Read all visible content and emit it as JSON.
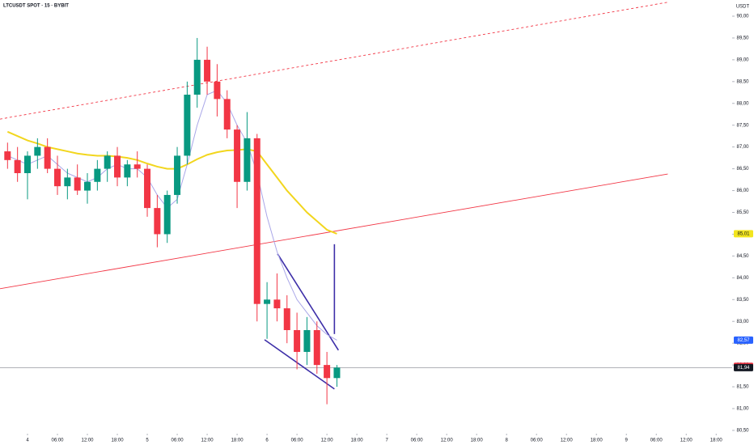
{
  "chart_data": {
    "type": "candlestick",
    "title": "LTCUSDT SPOT · 15 · BYBIT",
    "currency": "USDT",
    "up_color": "#089981",
    "down_color": "#f23645",
    "x": [
      -4,
      -2,
      0,
      2,
      4,
      6,
      8,
      10,
      12,
      14,
      16,
      18,
      20,
      22,
      24,
      26,
      28,
      30,
      32,
      34,
      36,
      38,
      40,
      42,
      44,
      46,
      48,
      50,
      52,
      54,
      56,
      58,
      60,
      62
    ],
    "open": [
      86.9,
      86.7,
      86.4,
      86.8,
      87.0,
      86.5,
      86.1,
      86.3,
      86.0,
      86.2,
      86.5,
      86.8,
      86.3,
      86.6,
      86.5,
      85.6,
      85.0,
      85.9,
      86.8,
      88.2,
      89.0,
      88.5,
      88.1,
      87.4,
      86.2,
      87.2,
      83.4,
      83.5,
      83.3,
      82.8,
      82.3,
      82.8,
      82.0,
      81.7
    ],
    "high": [
      87.1,
      87.0,
      86.9,
      87.2,
      87.2,
      86.8,
      86.5,
      86.6,
      86.4,
      86.7,
      86.9,
      87.0,
      86.7,
      86.9,
      86.6,
      85.9,
      86.0,
      87.0,
      88.5,
      89.5,
      89.3,
      88.9,
      88.3,
      87.5,
      87.8,
      87.3,
      83.9,
      84.1,
      83.6,
      83.2,
      83.1,
      83.0,
      82.3,
      82.0
    ],
    "low": [
      86.5,
      86.2,
      85.8,
      86.5,
      86.4,
      85.9,
      85.8,
      85.9,
      85.7,
      86.0,
      86.2,
      86.1,
      86.1,
      86.3,
      85.4,
      84.7,
      84.8,
      85.7,
      86.6,
      87.9,
      88.2,
      87.7,
      87.2,
      85.6,
      86.0,
      83.0,
      82.6,
      83.0,
      82.5,
      81.9,
      82.0,
      81.8,
      81.1,
      81.5
    ],
    "close": [
      86.7,
      86.4,
      86.8,
      87.0,
      86.5,
      86.1,
      86.3,
      86.0,
      86.2,
      86.5,
      86.8,
      86.3,
      86.6,
      86.5,
      85.6,
      85.0,
      85.9,
      86.8,
      88.2,
      89.0,
      88.5,
      88.1,
      87.4,
      86.2,
      87.2,
      83.4,
      83.5,
      83.3,
      82.8,
      82.3,
      82.8,
      82.0,
      81.7,
      81.94
    ],
    "series": [
      {
        "color": "#f2d61e",
        "values": [
          87.35,
          87.25,
          87.15,
          87.08,
          87.0,
          86.95,
          86.9,
          86.85,
          86.82,
          86.8,
          86.8,
          86.78,
          86.75,
          86.7,
          86.62,
          86.55,
          86.5,
          86.5,
          86.6,
          86.72,
          86.82,
          86.88,
          86.92,
          86.93,
          86.95,
          86.9,
          86.6,
          86.3,
          86.0,
          85.75,
          85.5,
          85.3,
          85.1,
          85.01
        ]
      },
      {
        "color": "#a9a6e8",
        "values": [
          86.8,
          86.7,
          86.6,
          86.7,
          86.8,
          86.6,
          86.4,
          86.3,
          86.2,
          86.3,
          86.5,
          86.6,
          86.5,
          86.5,
          86.3,
          85.9,
          85.6,
          85.8,
          86.6,
          87.5,
          88.2,
          88.3,
          88.0,
          87.5,
          87.1,
          86.4,
          85.4,
          84.6,
          84.0,
          83.5,
          83.2,
          82.9,
          82.7,
          82.57
        ]
      }
    ],
    "drawings": [
      {
        "color": "#f23645",
        "dashed": true,
        "points": [
          [
            -5.51,
            87.64
          ],
          [
            128.3,
            90.32
          ]
        ]
      },
      {
        "color": "#f23645",
        "dashed": false,
        "points": [
          [
            -5.51,
            83.75
          ],
          [
            128.3,
            86.38
          ]
        ]
      },
      {
        "color": "#3d2fa8",
        "dashed": false,
        "points": [
          [
            50.1,
            84.55
          ],
          [
            62.3,
            82.34
          ]
        ]
      },
      {
        "color": "#3d2fa8",
        "dashed": false,
        "points": [
          [
            47.5,
            82.58
          ],
          [
            61.5,
            81.45
          ]
        ]
      },
      {
        "color": "#3d2fa8",
        "dashed": false,
        "points": [
          [
            61.5,
            84.77
          ],
          [
            61.5,
            82.71
          ]
        ]
      }
    ],
    "price_line": 81.94,
    "price_labels": [
      {
        "value": 85.01,
        "label": "85,01",
        "color": "#f2e51e"
      },
      {
        "value": 82.57,
        "label": "82,57",
        "color": "#2962ff"
      },
      {
        "value": 81.97,
        "label": "81,97",
        "color": "#f23645"
      },
      {
        "value": 81.94,
        "label": "81,94",
        "color": "#131722"
      }
    ],
    "xlim": [
      -5.51,
      141.2
    ],
    "ylim": [
      80.128,
      90.371
    ],
    "xticks": [
      {
        "value": 0,
        "label": "4"
      },
      {
        "value": 6,
        "label": "06:00"
      },
      {
        "value": 12,
        "label": "12:00"
      },
      {
        "value": 18,
        "label": "18:00"
      },
      {
        "value": 24,
        "label": "5"
      },
      {
        "value": 30,
        "label": "06:00"
      },
      {
        "value": 36,
        "label": "12:00"
      },
      {
        "value": 42,
        "label": "18:00"
      },
      {
        "value": 48,
        "label": "6"
      },
      {
        "value": 54,
        "label": "06:00"
      },
      {
        "value": 60,
        "label": "12:00"
      },
      {
        "value": 66,
        "label": "18:00"
      },
      {
        "value": 72,
        "label": "7"
      },
      {
        "value": 78,
        "label": "06:00"
      },
      {
        "value": 84,
        "label": "12:00"
      },
      {
        "value": 90,
        "label": "18:00"
      },
      {
        "value": 96,
        "label": "8"
      },
      {
        "value": 102,
        "label": "06:00"
      },
      {
        "value": 108,
        "label": "12:00"
      },
      {
        "value": 114,
        "label": "18:00"
      },
      {
        "value": 120,
        "label": "9"
      },
      {
        "value": 126,
        "label": "06:00"
      },
      {
        "value": 132,
        "label": "12:00"
      },
      {
        "value": 138,
        "label": "18:00"
      }
    ],
    "yticks": [
      {
        "value": 80.5,
        "label": "80,50"
      },
      {
        "value": 81,
        "label": "81,00"
      },
      {
        "value": 81.5,
        "label": "81,50"
      },
      {
        "value": 82,
        "label": "82,00"
      },
      {
        "value": 82.5,
        "label": "82,50"
      },
      {
        "value": 83,
        "label": "83,00"
      },
      {
        "value": 83.5,
        "label": "83,50"
      },
      {
        "value": 84,
        "label": "84,00"
      },
      {
        "value": 84.5,
        "label": "84,50"
      },
      {
        "value": 85,
        "label": "85,00"
      },
      {
        "value": 85.5,
        "label": "85,50"
      },
      {
        "value": 86,
        "label": "86,00"
      },
      {
        "value": 86.5,
        "label": "86,50"
      },
      {
        "value": 87,
        "label": "87,00"
      },
      {
        "value": 87.5,
        "label": "87,50"
      },
      {
        "value": 88,
        "label": "88,00"
      },
      {
        "value": 88.5,
        "label": "88,50"
      },
      {
        "value": 89,
        "label": "89,00"
      },
      {
        "value": 89.5,
        "label": "89,50"
      },
      {
        "value": 90,
        "label": "90,00"
      }
    ]
  }
}
